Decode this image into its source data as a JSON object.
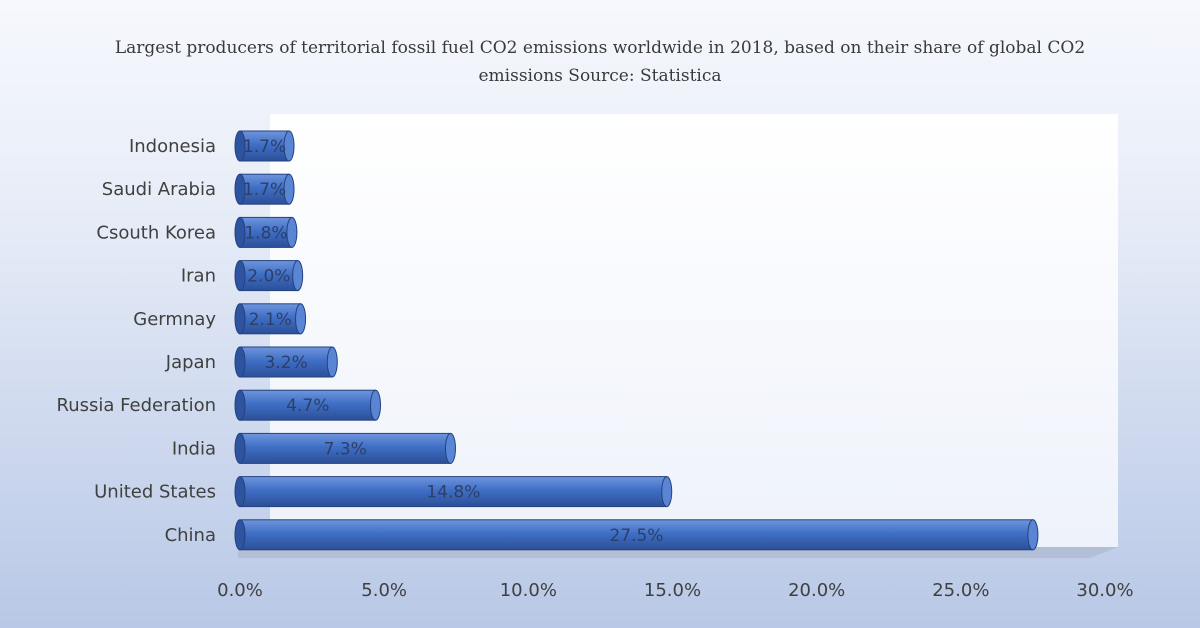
{
  "chart_data": {
    "type": "bar",
    "orientation": "horizontal",
    "title": "Largest producers of territorial fossil fuel CO2 emissions worldwide in 2018, based on their share of global CO2 emissions Source: Statistica",
    "categories": [
      "China",
      "United States",
      "India",
      "Russia Federation",
      "Japan",
      "Germnay",
      "Iran",
      "Csouth Korea",
      "Saudi Arabia",
      "Indonesia"
    ],
    "values": [
      27.5,
      14.8,
      7.3,
      4.7,
      3.2,
      2.1,
      2.0,
      1.8,
      1.7,
      1.7
    ],
    "data_labels": [
      "27.5%",
      "14.8%",
      "7.3%",
      "4.7%",
      "3.2%",
      "2.1%",
      "2.0%",
      "1.8%",
      "1.7%",
      "1.7%"
    ],
    "xlim": [
      0,
      30
    ],
    "xticks": [
      0,
      5,
      10,
      15,
      20,
      25,
      30
    ],
    "xtick_labels": [
      "0.0%",
      "5.0%",
      "10.0%",
      "15.0%",
      "20.0%",
      "25.0%",
      "30.0%"
    ],
    "xlabel": "",
    "ylabel": "",
    "grid": false,
    "legend": "none",
    "bar_color": "#3f6fc6"
  }
}
